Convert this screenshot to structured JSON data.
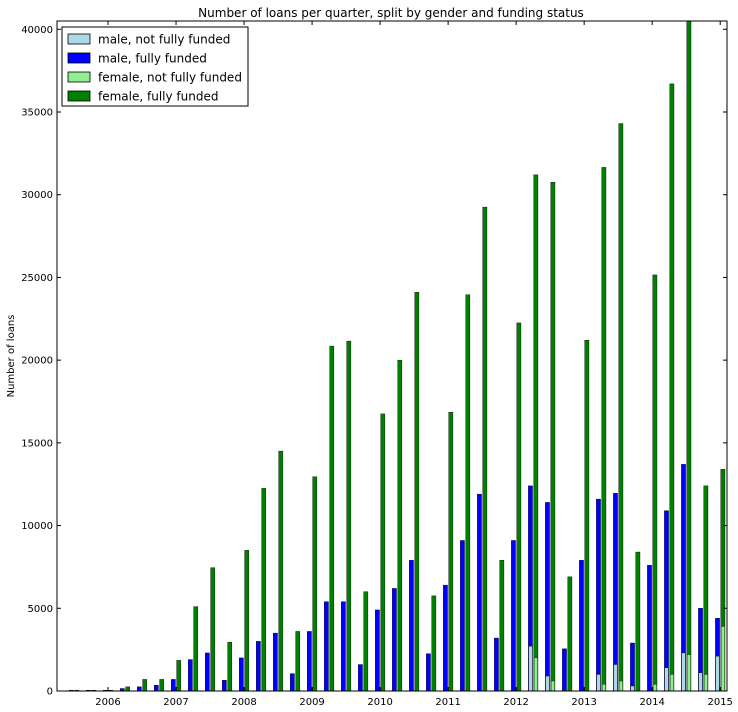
{
  "chart_data": {
    "type": "bar",
    "title": "Number of loans per quarter, split by gender and funding status",
    "xlabel": "",
    "ylabel": "Number of loans",
    "ylim": [
      0,
      40500
    ],
    "xlim": [
      2005.25,
      2015.1
    ],
    "yticks": [
      0,
      5000,
      10000,
      15000,
      20000,
      25000,
      30000,
      35000,
      40000
    ],
    "xticks": [
      2006,
      2007,
      2008,
      2009,
      2010,
      2011,
      2012,
      2013,
      2014,
      2015
    ],
    "legend_position": "top-left",
    "grid": false,
    "quarters": [
      2005.5,
      2005.75,
      2006.0,
      2006.25,
      2006.5,
      2006.75,
      2007.0,
      2007.25,
      2007.5,
      2007.75,
      2008.0,
      2008.25,
      2008.5,
      2008.75,
      2009.0,
      2009.25,
      2009.5,
      2009.75,
      2010.0,
      2010.25,
      2010.5,
      2010.75,
      2011.0,
      2011.25,
      2011.5,
      2011.75,
      2012.0,
      2012.25,
      2012.5,
      2012.75,
      2013.0,
      2013.25,
      2013.5,
      2013.75,
      2014.0,
      2014.25,
      2014.5,
      2014.75,
      2015.0
    ],
    "series": [
      {
        "name": "male, not fully funded",
        "color": "#add8e6",
        "values": [
          0,
          0,
          0,
          0,
          0,
          0,
          0,
          0,
          0,
          0,
          0,
          0,
          0,
          0,
          0,
          0,
          0,
          0,
          0,
          0,
          0,
          0,
          0,
          0,
          0,
          0,
          0,
          2700,
          900,
          50,
          0,
          1000,
          1600,
          300,
          0,
          1400,
          2300,
          1100,
          2100
        ]
      },
      {
        "name": "male, fully funded",
        "color": "#0000ff",
        "values": [
          50,
          50,
          50,
          150,
          250,
          350,
          700,
          1900,
          2300,
          650,
          2000,
          3000,
          3500,
          1050,
          3600,
          5400,
          5400,
          1600,
          4900,
          6200,
          7900,
          2250,
          6400,
          9100,
          11900,
          3200,
          9100,
          12400,
          11400,
          2550,
          7900,
          11600,
          11950,
          2900,
          7600,
          10900,
          13700,
          5000,
          4400
        ]
      },
      {
        "name": "female, not fully funded",
        "color": "#90ee90",
        "values": [
          0,
          0,
          0,
          0,
          0,
          0,
          0,
          0,
          0,
          0,
          0,
          0,
          0,
          0,
          0,
          0,
          0,
          0,
          0,
          0,
          0,
          0,
          0,
          0,
          0,
          0,
          0,
          2000,
          600,
          0,
          0,
          400,
          600,
          0,
          400,
          1000,
          2200,
          1000,
          3900
        ]
      },
      {
        "name": "female, fully funded",
        "color": "#008000",
        "values": [
          50,
          50,
          50,
          250,
          700,
          700,
          1850,
          5100,
          7450,
          2950,
          8500,
          12250,
          14500,
          3600,
          12950,
          20850,
          21150,
          6000,
          16750,
          20000,
          24100,
          5750,
          16850,
          23950,
          29250,
          7900,
          22250,
          31200,
          30750,
          6900,
          21200,
          31650,
          34300,
          8400,
          25150,
          36700,
          40500,
          12400,
          13400
        ]
      }
    ]
  }
}
